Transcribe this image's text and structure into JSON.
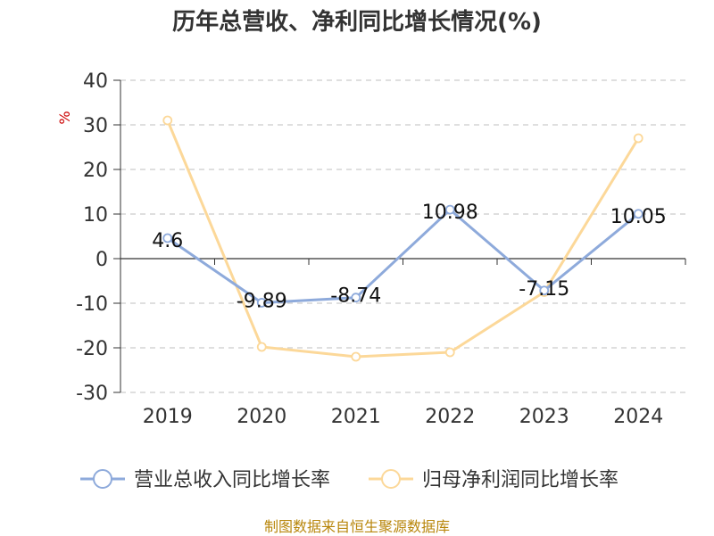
{
  "chart_data": {
    "type": "line",
    "title": "历年总营收、净利同比增长情况(%)",
    "ylabel": "%",
    "categories": [
      "2019",
      "2020",
      "2021",
      "2022",
      "2023",
      "2024"
    ],
    "ylim": [
      -30,
      40
    ],
    "yticks": [
      40,
      30,
      20,
      10,
      0,
      -10,
      -20,
      -30
    ],
    "grid": true,
    "legend_position": "bottom",
    "series": [
      {
        "name": "营业总收入同比增长率",
        "color": "#8eaadb",
        "values": [
          4.6,
          -9.89,
          -8.74,
          10.98,
          -7.15,
          10.05
        ],
        "labels": [
          "4.6",
          "-9.89",
          "-8.74",
          "10.98",
          "-7.15",
          "10.05"
        ]
      },
      {
        "name": "归母净利润同比增长率",
        "color": "#fcd899",
        "values": [
          31,
          -19.8,
          -22,
          -21,
          -7.5,
          27
        ]
      }
    ]
  },
  "source_note": "制图数据来自恒生聚源数据库"
}
